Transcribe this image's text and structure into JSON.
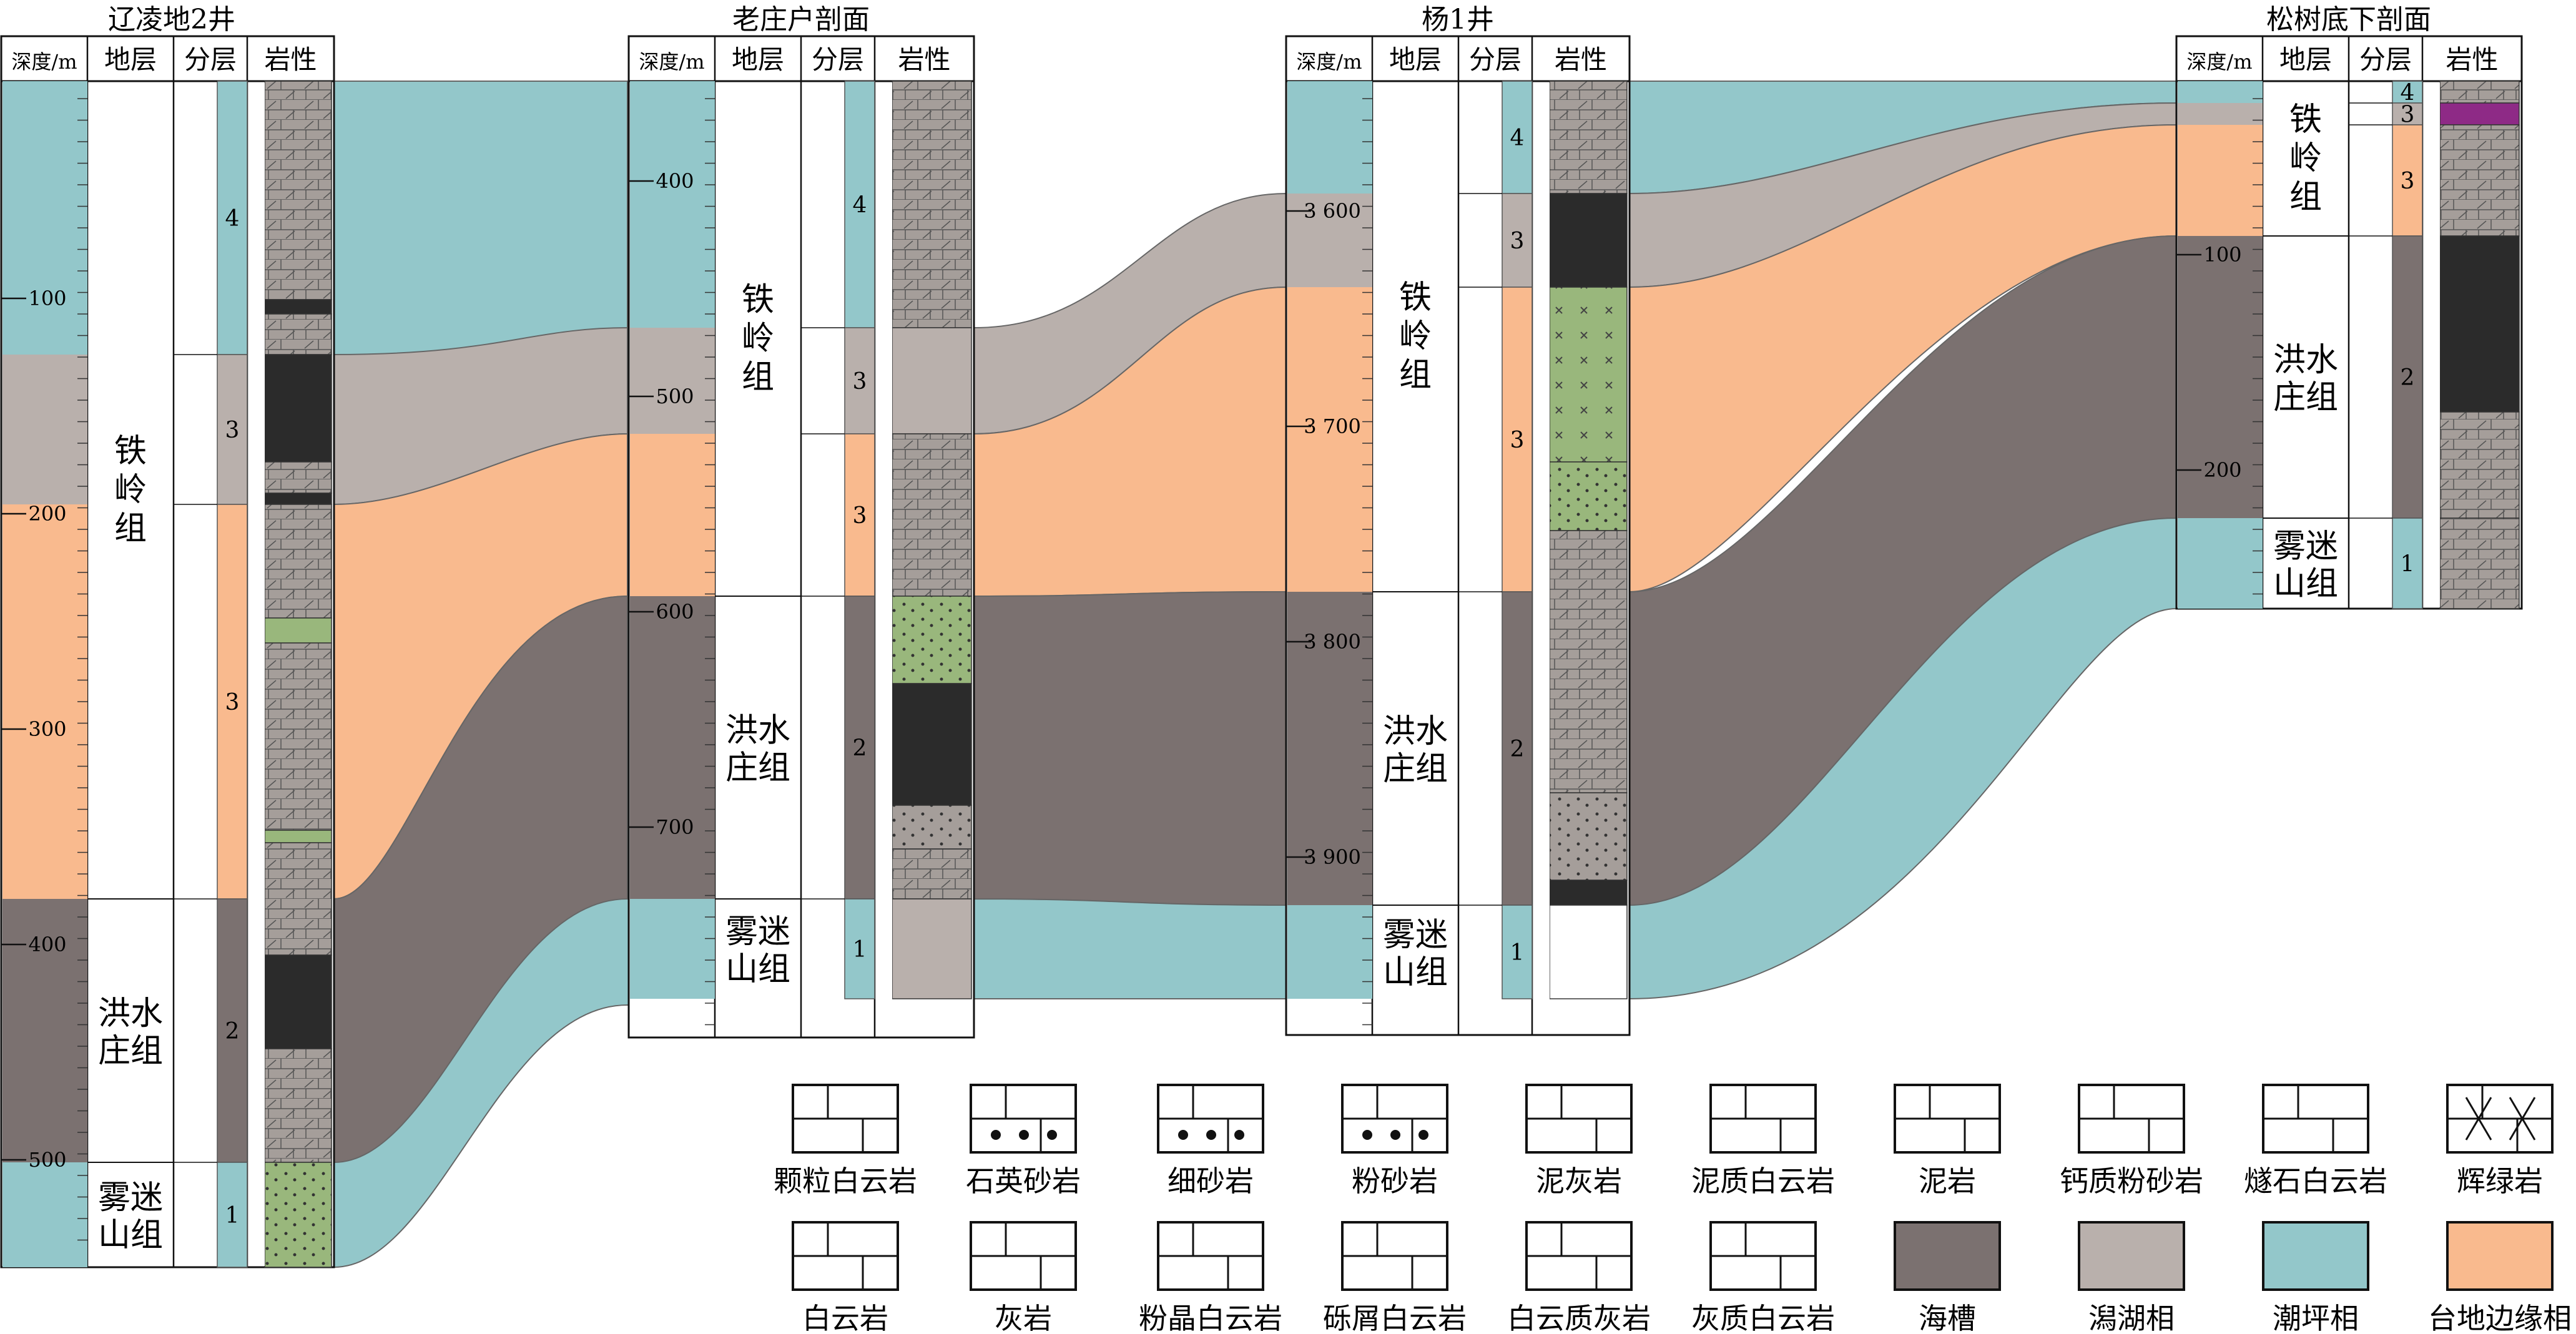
{
  "columns": [
    {
      "title": "辽凌地2井",
      "headers": [
        "深度/m",
        "地层",
        "分层",
        "岩性"
      ],
      "formations": [
        "铁岭组",
        "洪水庄组",
        "雾迷山组"
      ],
      "sublayers": [
        "4",
        "3",
        "3",
        "2",
        "1"
      ],
      "depths": [
        "100",
        "200",
        "300",
        "400",
        "500"
      ]
    },
    {
      "title": "老庄户剖面",
      "headers": [
        "深度/m",
        "地层",
        "分层",
        "岩性"
      ],
      "formations": [
        "铁岭组",
        "洪水庄组",
        "雾迷山组"
      ],
      "sublayers": [
        "4",
        "3",
        "3",
        "2",
        "1"
      ],
      "depths": [
        "400",
        "500",
        "600",
        "700"
      ]
    },
    {
      "title": "杨1井",
      "headers": [
        "深度/m",
        "地层",
        "分层",
        "岩性"
      ],
      "formations": [
        "铁岭组",
        "洪水庄组",
        "雾迷山组"
      ],
      "sublayers": [
        "4",
        "3",
        "3",
        "2",
        "1"
      ],
      "depths": [
        "3 600",
        "3 700",
        "3 800",
        "3 900"
      ]
    },
    {
      "title": "松树底下剖面",
      "headers": [
        "深度/m",
        "地层",
        "分层",
        "岩性"
      ],
      "formations": [
        "铁岭组",
        "洪水庄组",
        "雾迷山组"
      ],
      "sublayers": [
        "4",
        "3",
        "3",
        "2",
        "1"
      ],
      "depths": [
        "100",
        "200"
      ]
    }
  ],
  "legend": {
    "row1": [
      "颗粒白云岩",
      "石英砂岩",
      "细砂岩",
      "粉砂岩",
      "泥灰岩",
      "泥质白云岩",
      "泥岩",
      "钙质粉砂岩",
      "燧石白云岩",
      "辉绿岩"
    ],
    "row2": [
      "白云岩",
      "灰岩",
      "粉晶白云岩",
      "砾屑白云岩",
      "白云质灰岩",
      "灰质白云岩",
      "海槽",
      "潟湖相",
      "潮坪相",
      "台地边缘相"
    ]
  },
  "colors": {
    "tidal": "#93c7ca",
    "lagoon": "#b9b0ac",
    "platform": "#f9ba8e",
    "trough": "#7b7170",
    "litho": "#a59e9a",
    "black": "#2b2b2b",
    "green": "#99b77c"
  }
}
